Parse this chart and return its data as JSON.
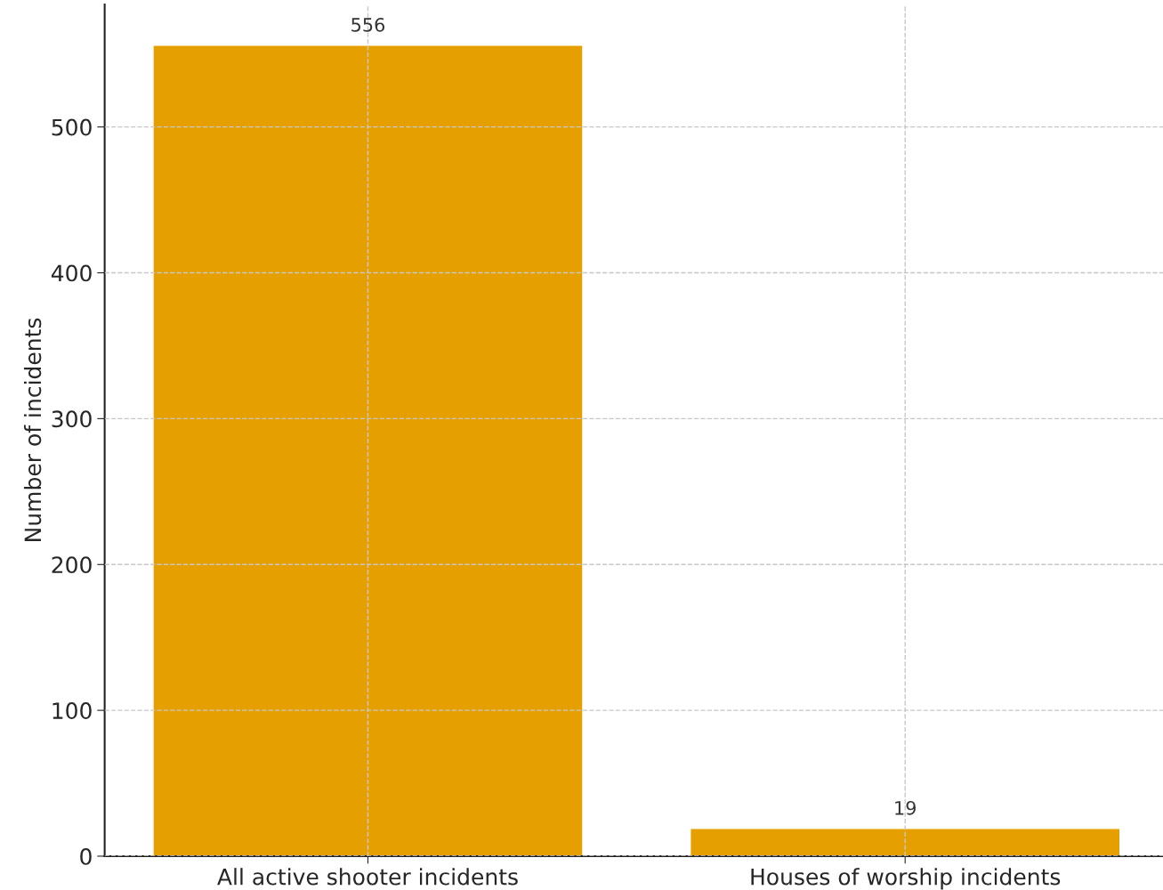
{
  "chart_data": {
    "type": "bar",
    "ylabel": "Number of incidents",
    "categories": [
      "All active shooter incidents",
      "Houses of worship incidents"
    ],
    "values": [
      556,
      19
    ],
    "color": "#e5a000",
    "ylim": [
      0,
      584
    ],
    "yticks": [
      0,
      100,
      200,
      300,
      400,
      500
    ],
    "grid": true,
    "data_labels": true
  }
}
